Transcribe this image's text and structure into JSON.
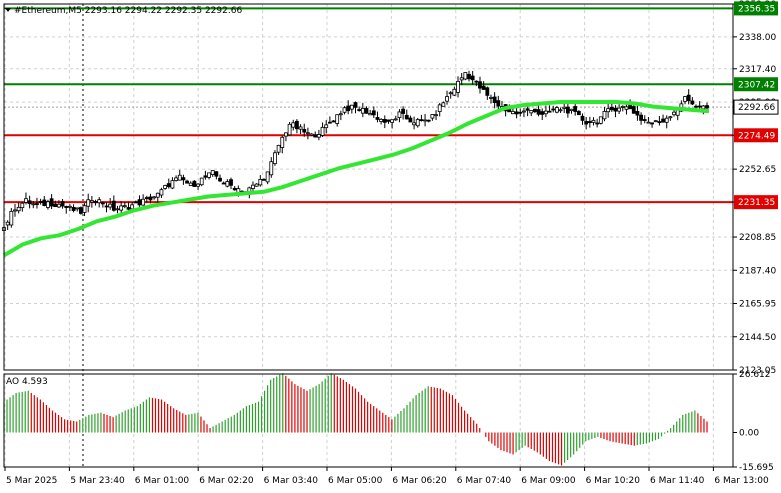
{
  "chart_data": [
    {
      "type": "candlestick",
      "header": "#Ethereum,M5  2293.16 2294.22 2292.35 2292.66",
      "ylim": [
        2123.05,
        2359.2
      ],
      "y_ticks": [
        "2359.20",
        "2338.00",
        "2317.40",
        "2295.90",
        "2274.49",
        "2252.65",
        "2231.35",
        "2208.85",
        "2187.40",
        "2165.95",
        "2144.50",
        "2123.05"
      ],
      "x_ticks": [
        "5 Mar 2025",
        "5 Mar 23:40",
        "6 Mar 01:00",
        "6 Mar 02:20",
        "6 Mar 03:40",
        "6 Mar 05:00",
        "6 Mar 06:20",
        "6 Mar 07:40",
        "6 Mar 09:00",
        "6 Mar 10:20",
        "6 Mar 11:40",
        "6 Mar 13:00"
      ],
      "levels": [
        {
          "value": 2356.35,
          "label": "2356.35",
          "color": "#008000"
        },
        {
          "value": 2307.42,
          "label": "2307.42",
          "color": "#008000"
        },
        {
          "value": 2274.49,
          "label": "2274.49",
          "color": "#e00000"
        },
        {
          "value": 2231.35,
          "label": "2231.35",
          "color": "#e00000"
        }
      ],
      "current_price": {
        "value": 2292.66,
        "label": "2292.66"
      },
      "close_path": [
        2215,
        2228,
        2232,
        2229,
        2231,
        2230,
        2227,
        2225,
        2234,
        2231,
        2227,
        2228,
        2230,
        2233,
        2236,
        2243,
        2247,
        2242,
        2246,
        2250,
        2244,
        2241,
        2238,
        2243,
        2250,
        2268,
        2282,
        2278,
        2274,
        2278,
        2285,
        2292,
        2292,
        2290,
        2286,
        2282,
        2288,
        2284,
        2283,
        2286,
        2296,
        2305,
        2315,
        2308,
        2300,
        2294,
        2290,
        2288,
        2292,
        2287,
        2291,
        2292,
        2288,
        2283,
        2284,
        2290,
        2293,
        2292,
        2285,
        2282,
        2284,
        2290,
        2298,
        2294,
        2292
      ],
      "ma_color": "#32e632",
      "ma": [
        2197,
        2204,
        2208,
        2210,
        2214,
        2219,
        2222,
        2226,
        2229,
        2231,
        2233,
        2235,
        2236,
        2237,
        2238,
        2241,
        2245,
        2249,
        2253,
        2256,
        2259,
        2262,
        2266,
        2271,
        2276,
        2282,
        2287,
        2292,
        2294,
        2295,
        2296,
        2296,
        2296,
        2296,
        2295,
        2293,
        2292,
        2291,
        2290
      ],
      "candle_colors": {
        "bull": "#000000",
        "bear": "#000000"
      }
    },
    {
      "type": "bar",
      "title": "AO 4.593",
      "ylim": [
        -15.695,
        26.612
      ],
      "y_ticks": [
        "26.612",
        "0.00",
        "-15.695"
      ],
      "values": [
        14,
        18,
        19,
        15,
        10,
        6,
        5,
        8,
        9,
        7,
        10,
        12,
        16,
        15,
        11,
        8,
        9,
        2,
        5,
        8,
        12,
        14,
        24,
        27,
        22,
        19,
        22,
        27,
        24,
        20,
        14,
        10,
        6,
        11,
        17,
        21,
        20,
        17,
        10,
        4,
        -4,
        -8,
        -10,
        -6,
        -9,
        -13,
        -15,
        -10,
        -4,
        -2,
        -4,
        -5,
        -6,
        -5,
        -3,
        2,
        8,
        10,
        5
      ],
      "colors": {
        "up": "#2ea02e",
        "down": "#e00000"
      }
    }
  ]
}
